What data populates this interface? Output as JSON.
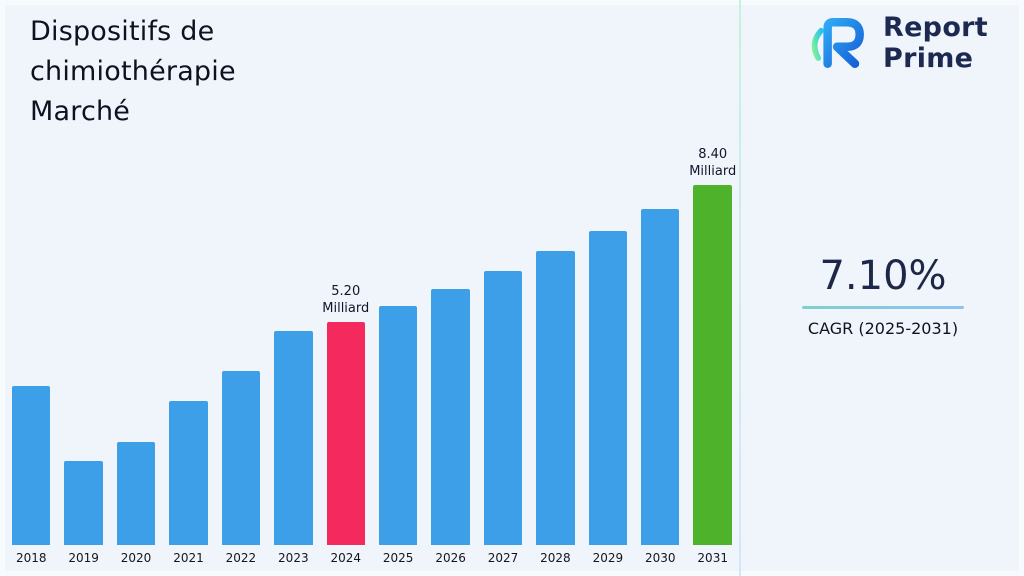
{
  "page": {
    "title_lines": [
      "Dispositifs de",
      "chimiothérapie",
      "Marché"
    ]
  },
  "logo": {
    "name_top": "Report",
    "name_bottom": "Prime"
  },
  "cagr": {
    "value": "7.10%",
    "label": "CAGR (2025-2031)"
  },
  "chart_data": {
    "type": "bar",
    "title": "Dispositifs de chimiothérapie Marché",
    "unit": "Milliard",
    "categories": [
      "2018",
      "2019",
      "2020",
      "2021",
      "2022",
      "2023",
      "2024",
      "2025",
      "2026",
      "2027",
      "2028",
      "2029",
      "2030",
      "2031"
    ],
    "values": [
      3.7,
      1.95,
      2.4,
      3.35,
      4.05,
      5.0,
      5.2,
      5.57,
      5.97,
      6.39,
      6.85,
      7.33,
      7.85,
      8.4
    ],
    "ylim": [
      0,
      8.4
    ],
    "xlabel": "",
    "ylabel": "",
    "grid": false,
    "legend": false,
    "bar_color_default": "#3d9fe8",
    "highlights": [
      {
        "category": "2024",
        "color": "#f42a5f",
        "label_lines": [
          "5.20",
          "Milliard"
        ]
      },
      {
        "category": "2031",
        "color": "#4eb32b",
        "label_lines": [
          "8.40",
          "Milliard"
        ]
      }
    ]
  },
  "theme": {
    "background": "#f0f5fc",
    "title_color": "#0e1120",
    "logo_text_color": "#1c2950",
    "cagr_value_color": "#1d2747"
  }
}
